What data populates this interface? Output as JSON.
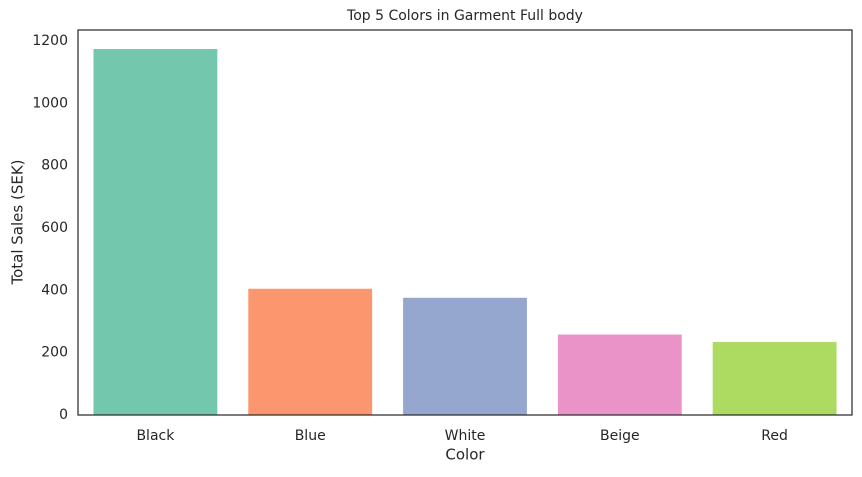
{
  "chart_data": {
    "type": "bar",
    "title": "Top 5 Colors in Garment Full body",
    "x_label": "Color",
    "y_label": "Total Sales (SEK)",
    "categories": [
      "Black",
      "Blue",
      "White",
      "Beige",
      "Red"
    ],
    "values": [
      1174,
      405,
      376,
      258,
      234
    ],
    "colors": [
      "#66c2a5",
      "#fc8d62",
      "#8da0cb",
      "#e78ac3",
      "#a6d854"
    ],
    "ylim": [
      0,
      1235
    ],
    "yticks": [
      0,
      200,
      400,
      600,
      800,
      1000,
      1200
    ],
    "grid": false
  }
}
